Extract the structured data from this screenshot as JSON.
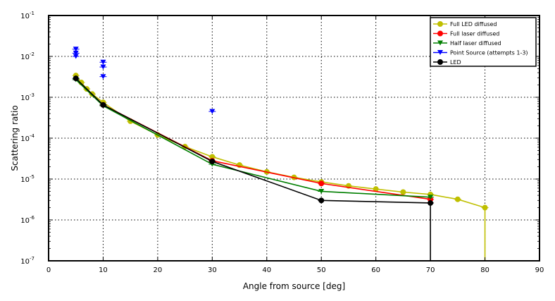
{
  "chart_data": {
    "type": "line",
    "xlabel": "Angle from source [deg]",
    "ylabel": "Scattering ratio",
    "xlim": [
      0,
      90
    ],
    "ylim": [
      1e-07,
      0.1
    ],
    "yscale": "log",
    "grid": true,
    "legend_position": "top-right",
    "x_ticks": [
      "0",
      "10",
      "20",
      "30",
      "40",
      "50",
      "60",
      "70",
      "80",
      "90"
    ],
    "y_ticks": [
      {
        "value": 1e-07,
        "base": "10",
        "exp": "-7"
      },
      {
        "value": 1e-06,
        "base": "10",
        "exp": "-6"
      },
      {
        "value": 1e-05,
        "base": "10",
        "exp": "-5"
      },
      {
        "value": 0.0001,
        "base": "10",
        "exp": "-4"
      },
      {
        "value": 0.001,
        "base": "10",
        "exp": "-3"
      },
      {
        "value": 0.01,
        "base": "10",
        "exp": "-2"
      },
      {
        "value": 0.1,
        "base": "10",
        "exp": "-1"
      }
    ],
    "series": [
      {
        "name": "Full LED diffused",
        "color": "#bfbf00",
        "marker": "circle",
        "line": true,
        "x": [
          5,
          6,
          7,
          8,
          10,
          15,
          20,
          25,
          30,
          35,
          40,
          45,
          50,
          55,
          60,
          65,
          70,
          75,
          80,
          80
        ],
        "y": [
          0.0034,
          0.0023,
          0.0016,
          0.0012,
          0.00075,
          0.00026,
          0.00012,
          6.2e-05,
          3.5e-05,
          2.2e-05,
          1.5e-05,
          1.1e-05,
          8.5e-06,
          6.8e-06,
          5.7e-06,
          4.8e-06,
          4.2e-06,
          3.2e-06,
          2e-06,
          1e-07
        ]
      },
      {
        "name": "Full laser diffused",
        "color": "#ff0000",
        "marker": "circle",
        "line": true,
        "x": [
          10,
          30,
          50,
          70
        ],
        "y": [
          0.00065,
          2.8e-05,
          7.8e-06,
          3.2e-06
        ]
      },
      {
        "name": "Half laser diffused",
        "color": "#007f00",
        "marker": "triangle-down",
        "line": true,
        "x": [
          5,
          10,
          30,
          50,
          70
        ],
        "y": [
          0.0027,
          0.00062,
          2.3e-05,
          5e-06,
          3.6e-06
        ]
      },
      {
        "name": "Point Source (attempts 1-3)",
        "color": "#0000ff",
        "marker": "triangle-down",
        "line": false,
        "x": [
          5,
          5,
          5,
          10,
          10,
          10,
          30
        ],
        "y": [
          0.015,
          0.012,
          0.01,
          0.0072,
          0.0055,
          0.0032,
          0.00045
        ]
      },
      {
        "name": "LED",
        "color": "#000000",
        "marker": "circle",
        "line": true,
        "x": [
          5,
          10,
          30,
          50,
          70,
          70
        ],
        "y": [
          0.0029,
          0.00065,
          2.7e-05,
          3e-06,
          2.6e-06,
          1e-07
        ]
      }
    ]
  }
}
